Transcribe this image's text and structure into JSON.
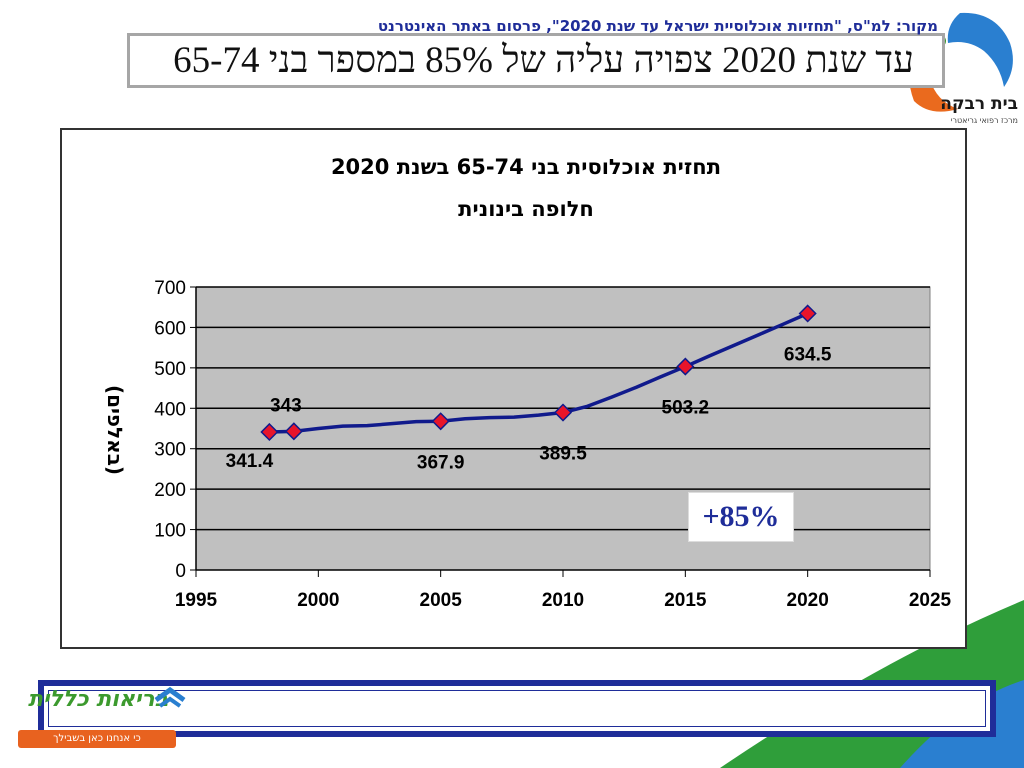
{
  "slide": {
    "title": "עד שנת 2020 צפויה עליה של 85% במספר בני 65-74",
    "logo_name": "בית רבקה",
    "logo_subtitle": "מרכז רפואי גריאטרי",
    "source": "מקור: למ\"ס, \"תחזיות אוכלוסיית ישראל עד שנת 2020\", פרסום באתר האינטרנט",
    "health_logo_name": "בריאות כללית",
    "health_logo_slogan": "כי אנחנו כאן בשבילך",
    "colors": {
      "title_border": "#a6a6a6",
      "source_border": "#1f2d99",
      "line": "#101a8c",
      "marker": "#e8142a",
      "plot_bg": "#c0c0c0",
      "decor_green": "#2f9e3a",
      "decor_blue": "#2a7fd0"
    }
  },
  "chart_data": {
    "type": "line",
    "title": "תחזית אוכלוסית בני 65-74 בשנת 2020",
    "subtitle": "חלופה בינונית",
    "xlabel": "",
    "ylabel": "(באלפים)",
    "xlim": [
      1995,
      2025
    ],
    "ylim": [
      0,
      700
    ],
    "x_ticks": [
      "1995",
      "2000",
      "2005",
      "2010",
      "2015",
      "2020",
      "2025"
    ],
    "y_ticks": [
      "0",
      "100",
      "200",
      "300",
      "400",
      "500",
      "600",
      "700"
    ],
    "grid": true,
    "legend": "none",
    "series": [
      {
        "line_x": [
          1998,
          1999,
          2000,
          2001,
          2002,
          2003,
          2004,
          2005,
          2006,
          2007,
          2008,
          2009,
          2010,
          2011,
          2012,
          2013,
          2014,
          2015,
          2016,
          2017,
          2018,
          2019,
          2020
        ],
        "line_y": [
          341.4,
          343,
          350,
          356,
          357,
          362,
          367,
          367.9,
          374,
          377,
          378,
          383,
          389.5,
          405,
          428,
          452,
          478,
          503.2,
          530,
          556,
          582,
          608,
          634.5
        ],
        "marker_x": [
          1998,
          1999,
          2005,
          2010,
          2015,
          2020
        ],
        "marker_y": [
          341.4,
          343,
          367.9,
          389.5,
          503.2,
          634.5
        ],
        "labels": [
          "341.4",
          "343",
          "367.9",
          "389.5",
          "503.2",
          "634.5"
        ]
      }
    ],
    "annotation": "+85%"
  }
}
